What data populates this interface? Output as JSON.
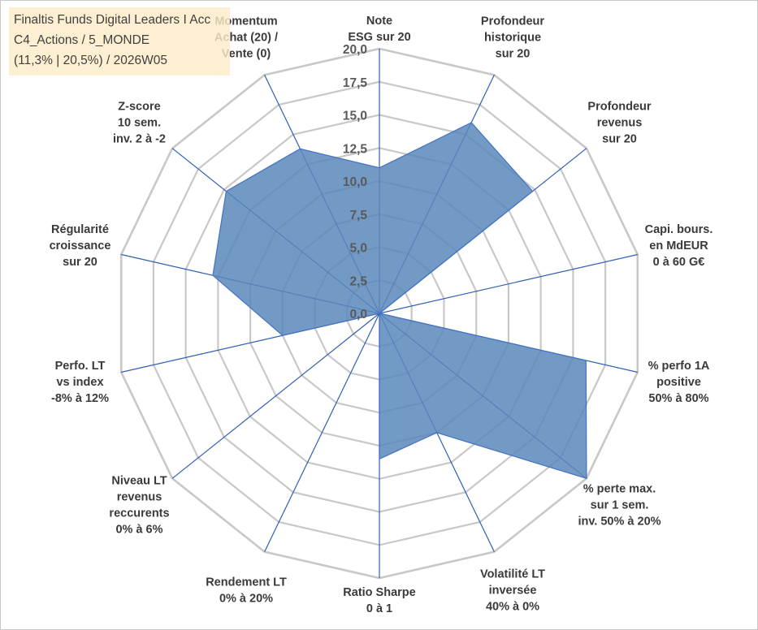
{
  "title_box": {
    "line1": "Finaltis Funds Digital Leaders I Acc",
    "line2": "C4_Actions / 5_MONDE",
    "line3": "(11,3% | 20,5%) / 2026W05"
  },
  "colors": {
    "fill": "#5b87bb",
    "stroke": "#4472c4",
    "grid": "#c8c8c8",
    "spoke": "#2f5fb3",
    "title_bg": "#fdecc8"
  },
  "chart_data": {
    "type": "radar",
    "title": "Finaltis Funds Digital Leaders I Acc",
    "rmin": 0,
    "rmax": 20,
    "step": 2.5,
    "ticks": [
      "0,0",
      "2,5",
      "5,0",
      "7,5",
      "10,0",
      "12,5",
      "15,0",
      "17,5",
      "20,0"
    ],
    "axes": [
      {
        "lines": [
          "Note",
          "ESG sur 20"
        ],
        "value": 11.0
      },
      {
        "lines": [
          "Profondeur",
          "historique",
          "sur 20"
        ],
        "value": 16.0
      },
      {
        "lines": [
          "Profondeur",
          "revenus",
          "sur 20"
        ],
        "value": 14.8
      },
      {
        "lines": [
          "Capi. bours.",
          "en MdEUR",
          "0 à 60 G€"
        ],
        "value": 0.0
      },
      {
        "lines": [
          "% perfo 1A",
          "positive",
          "50% à 80%"
        ],
        "value": 16.0
      },
      {
        "lines": [
          "% perte max.",
          "sur 1 sem.",
          "inv. 50% à 20%"
        ],
        "value": 20.0
      },
      {
        "lines": [
          "Volatilité LT",
          "inversée",
          "40% à 0%"
        ],
        "value": 10.0
      },
      {
        "lines": [
          "Ratio Sharpe",
          "0 à 1"
        ],
        "value": 11.0
      },
      {
        "lines": [
          "Rendement LT",
          "0% à 20%"
        ],
        "value": 0.0
      },
      {
        "lines": [
          "Niveau LT",
          "revenus",
          "reccurents",
          "0% à 6%"
        ],
        "value": 0.0
      },
      {
        "lines": [
          "Perfo. LT",
          "vs index",
          "-8% à 12%"
        ],
        "value": 7.5
      },
      {
        "lines": [
          "Régularité",
          "croissance",
          "sur 20"
        ],
        "value": 12.9
      },
      {
        "lines": [
          "Z-score",
          "10 sem.",
          "inv. 2 à -2"
        ],
        "value": 14.8
      },
      {
        "lines": [
          "Momentum",
          "Achat (20) /",
          "Vente (0)"
        ],
        "value": 13.8
      }
    ]
  }
}
